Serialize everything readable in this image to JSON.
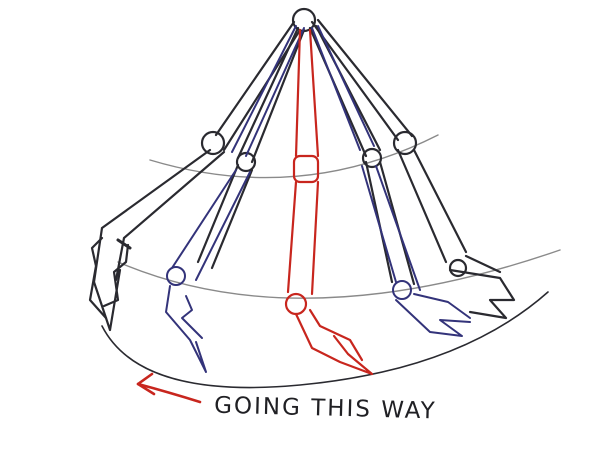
{
  "caption": "GOING THIS WAY",
  "colors": {
    "ink": "#2a2a30",
    "blue_ink": "#33337a",
    "red_ink": "#c8261e",
    "guide": "#8a8a8a"
  }
}
